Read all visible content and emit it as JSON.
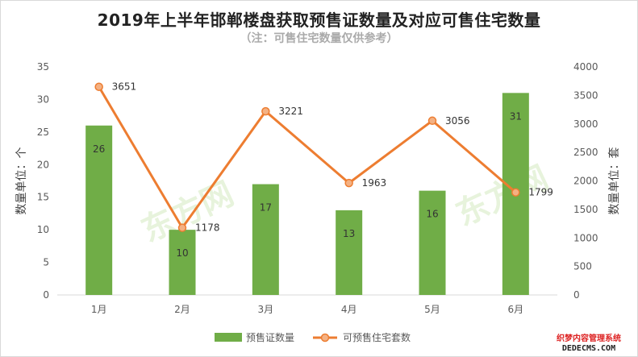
{
  "chart_data": {
    "type": "bar+line",
    "title": "2019年上半年邯郸楼盘获取预售证数量及对应可售住宅数量",
    "subtitle": "（注：可售住宅数量仅供参考）",
    "categories": [
      "1月",
      "2月",
      "3月",
      "4月",
      "5月",
      "6月"
    ],
    "series": [
      {
        "name": "预售证数量",
        "kind": "bar",
        "axis": "left",
        "values": [
          26,
          10,
          17,
          13,
          16,
          31
        ],
        "color": "#70ad47"
      },
      {
        "name": "可预售住宅套数",
        "kind": "line",
        "axis": "right",
        "values": [
          3651,
          1178,
          3221,
          1963,
          3056,
          1799
        ],
        "color": "#ed7d31"
      }
    ],
    "ylabel_left": "数量单位：个",
    "ylabel_right": "数量单位：套",
    "ylim_left": [
      0,
      35
    ],
    "yticks_left": [
      0,
      5,
      10,
      15,
      20,
      25,
      30,
      35
    ],
    "ylim_right": [
      0,
      4000
    ],
    "yticks_right": [
      0,
      500,
      1000,
      1500,
      2000,
      2500,
      3000,
      3500,
      4000
    ],
    "legend_position": "bottom",
    "grid": false
  },
  "watermark": "东方网 www.sjia.com",
  "corner_stamp": {
    "line1": "织梦内容管理系统",
    "line2": "DEDECMS.COM"
  }
}
